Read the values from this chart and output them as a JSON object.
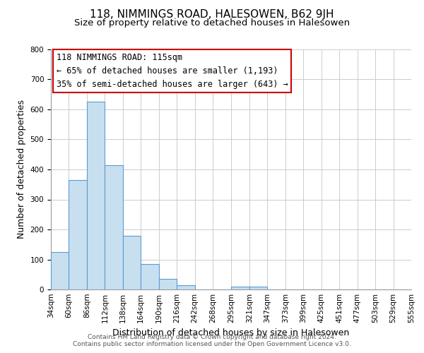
{
  "title": "118, NIMMINGS ROAD, HALESOWEN, B62 9JH",
  "subtitle": "Size of property relative to detached houses in Halesowen",
  "xlabel": "Distribution of detached houses by size in Halesowen",
  "ylabel": "Number of detached properties",
  "bin_edges": [
    34,
    60,
    86,
    112,
    138,
    164,
    190,
    216,
    242,
    268,
    295,
    321,
    347,
    373,
    399,
    425,
    451,
    477,
    503,
    529,
    555
  ],
  "bar_heights": [
    125,
    365,
    625,
    415,
    178,
    85,
    35,
    15,
    0,
    0,
    10,
    10,
    0,
    0,
    0,
    0,
    0,
    0,
    0,
    0
  ],
  "bar_color": "#c8dff0",
  "bar_edge_color": "#5b9bd5",
  "annotation_line1": "118 NIMMINGS ROAD: 115sqm",
  "annotation_line2": "← 65% of detached houses are smaller (1,193)",
  "annotation_line3": "35% of semi-detached houses are larger (643) →",
  "ylim": [
    0,
    800
  ],
  "yticks": [
    0,
    100,
    200,
    300,
    400,
    500,
    600,
    700,
    800
  ],
  "tick_labels": [
    "34sqm",
    "60sqm",
    "86sqm",
    "112sqm",
    "138sqm",
    "164sqm",
    "190sqm",
    "216sqm",
    "242sqm",
    "268sqm",
    "295sqm",
    "321sqm",
    "347sqm",
    "373sqm",
    "399sqm",
    "425sqm",
    "451sqm",
    "477sqm",
    "503sqm",
    "529sqm",
    "555sqm"
  ],
  "footer_text": "Contains HM Land Registry data © Crown copyright and database right 2024.\nContains public sector information licensed under the Open Government Licence v3.0.",
  "background_color": "#ffffff",
  "grid_color": "#cccccc",
  "annotation_box_color": "#ffffff",
  "annotation_box_edge_color": "#cc0000",
  "title_fontsize": 11,
  "subtitle_fontsize": 9.5,
  "axis_label_fontsize": 9,
  "tick_fontsize": 7.5,
  "annotation_fontsize": 8.5,
  "footer_fontsize": 6.5
}
